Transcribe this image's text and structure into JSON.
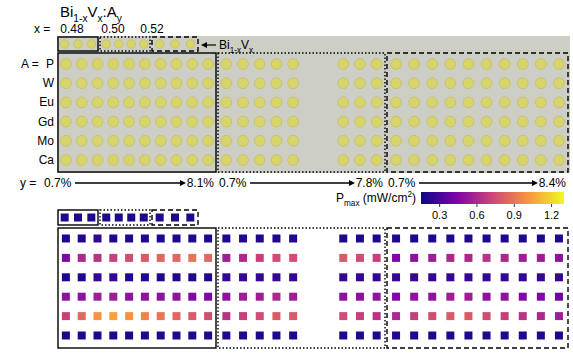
{
  "chart_data": {
    "type": "heatmap",
    "title": [
      "Bi",
      "1-x",
      "V",
      "x",
      ":A",
      "y"
    ],
    "composition_prefix": "x =",
    "compositions": [
      "0.48",
      "0.50",
      "0.52"
    ],
    "reference_label": [
      "Bi",
      "1-x",
      "V",
      "x"
    ],
    "row_prefix": "A =",
    "rows": [
      "P",
      "W",
      "Eu",
      "Gd",
      "Mo",
      "Ca"
    ],
    "y_prefix": "y =",
    "y_ranges": [
      {
        "start": "0.7%",
        "end": "8.1%"
      },
      {
        "start": "0.7%",
        "end": "7.8%"
      },
      {
        "start": "0.7%",
        "end": "8.4%"
      }
    ],
    "colorbar": {
      "label": [
        "P",
        "max",
        " (mW/cm",
        "2",
        ")"
      ],
      "range": [
        0.15,
        1.3
      ],
      "ticks": [
        0.3,
        0.6,
        0.9,
        1.2
      ]
    },
    "reference_cells": [
      [
        0.2,
        0.2,
        0.2
      ],
      [
        0.2,
        0.2,
        0.2,
        0.2
      ],
      [
        0.2,
        0.2,
        0.2
      ]
    ],
    "cells": [
      [
        [
          0.2,
          0.2,
          0.25,
          0.2,
          0.2,
          0.2,
          0.2,
          0.2,
          0.2,
          0.2
        ],
        [
          0.45,
          0.6,
          0.65,
          0.7,
          0.75,
          0.8,
          0.85,
          0.85,
          0.9,
          0.85
        ],
        [
          0.2,
          0.2,
          0.25,
          0.25,
          0.2,
          0.2,
          0.2,
          0.2,
          0.2,
          0.2
        ],
        [
          0.5,
          0.5,
          0.55,
          0.55,
          0.5,
          0.5,
          0.5,
          0.5,
          0.45,
          0.45
        ],
        [
          0.7,
          0.85,
          1.0,
          1.05,
          1.0,
          0.95,
          0.9,
          0.85,
          0.8,
          0.75
        ],
        [
          0.2,
          0.2,
          0.2,
          0.2,
          0.2,
          0.2,
          0.2,
          0.2,
          0.2,
          0.2
        ]
      ],
      [
        [
          0.2,
          0.2,
          0.2,
          0.2,
          0.2,
          null,
          null,
          0.2,
          0.2,
          0.2
        ],
        [
          0.55,
          0.6,
          0.7,
          0.75,
          0.75,
          null,
          null,
          0.8,
          0.75,
          0.7
        ],
        [
          0.25,
          0.25,
          0.25,
          0.25,
          0.25,
          null,
          null,
          0.25,
          0.25,
          0.25
        ],
        [
          0.5,
          0.55,
          0.55,
          0.6,
          0.55,
          null,
          null,
          0.5,
          0.5,
          0.5
        ],
        [
          0.65,
          0.7,
          0.75,
          0.8,
          0.8,
          null,
          null,
          0.75,
          0.7,
          0.65
        ],
        [
          0.2,
          0.2,
          0.2,
          0.2,
          0.2,
          null,
          null,
          0.2,
          0.2,
          0.2
        ]
      ],
      [
        [
          0.2,
          0.2,
          0.2,
          0.2,
          0.2,
          0.2,
          0.2,
          0.2,
          0.2,
          0.2
        ],
        [
          0.45,
          0.5,
          0.55,
          0.6,
          0.6,
          0.65,
          0.6,
          0.55,
          0.55,
          0.5
        ],
        [
          0.25,
          0.25,
          0.25,
          0.25,
          0.25,
          0.25,
          0.25,
          0.25,
          0.25,
          0.25
        ],
        [
          0.45,
          0.5,
          0.5,
          0.55,
          0.55,
          0.5,
          0.5,
          0.45,
          0.45,
          0.4
        ],
        [
          0.6,
          0.7,
          0.75,
          0.8,
          0.8,
          0.75,
          0.7,
          0.65,
          0.6,
          0.55
        ],
        [
          0.2,
          0.2,
          0.2,
          0.2,
          0.2,
          0.2,
          0.2,
          0.2,
          0.2,
          0.2
        ]
      ]
    ]
  }
}
